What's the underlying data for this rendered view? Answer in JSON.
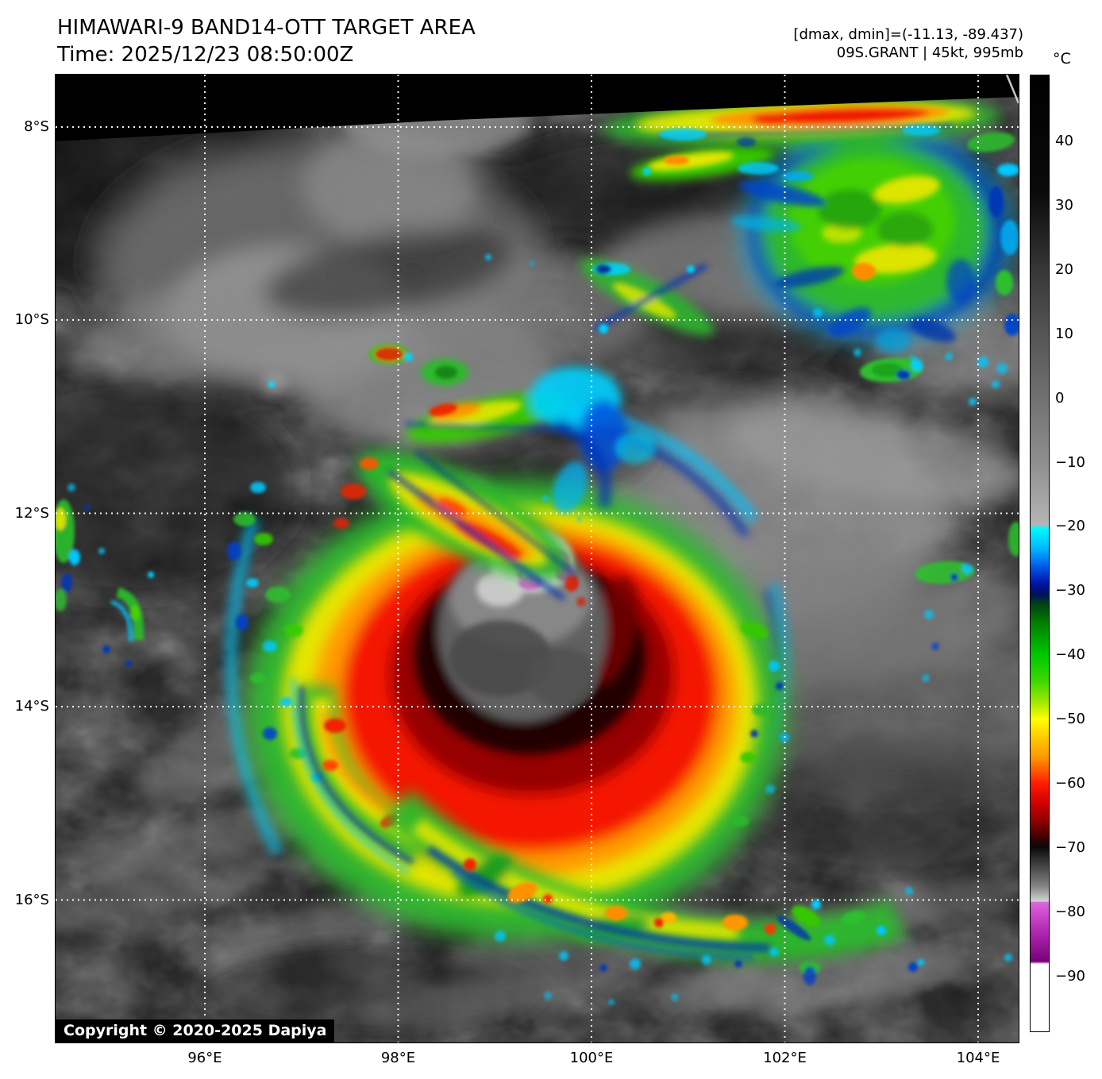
{
  "header": {
    "title": "HIMAWARI-9 BAND14-OTT TARGET AREA",
    "time_line": "Time: 2025/12/23 08:50:00Z",
    "annotation_line1": "[dmax, dmin]=(-11.13, -89.437)",
    "annotation_line2": "09S.GRANT | 45kt, 995mb"
  },
  "map": {
    "copyright": "Copyright © 2020-2025 Dapiya"
  },
  "axes": {
    "lat_tick_labels": [
      "8°S",
      "10°S",
      "12°S",
      "14°S",
      "16°S"
    ],
    "lon_tick_labels": [
      "96°E",
      "98°E",
      "100°E",
      "102°E",
      "104°E"
    ]
  },
  "colorbar": {
    "unit": "°C",
    "ticks": [
      {
        "value": 40,
        "label": "40"
      },
      {
        "value": 30,
        "label": "30"
      },
      {
        "value": 20,
        "label": "20"
      },
      {
        "value": 10,
        "label": "10"
      },
      {
        "value": 0,
        "label": "0"
      },
      {
        "value": -10,
        "label": "−10"
      },
      {
        "value": -20,
        "label": "−20"
      },
      {
        "value": -30,
        "label": "−30"
      },
      {
        "value": -40,
        "label": "−40"
      },
      {
        "value": -50,
        "label": "−50"
      },
      {
        "value": -60,
        "label": "−60"
      },
      {
        "value": -70,
        "label": "−70"
      },
      {
        "value": -80,
        "label": "−80"
      },
      {
        "value": -90,
        "label": "−90"
      }
    ],
    "scale_top_c": 50.4,
    "scale_bottom_c": -98.7,
    "stops": [
      {
        "v": 50.4,
        "c": "#000000"
      },
      {
        "v": 32,
        "c": "#0a0a0a"
      },
      {
        "v": 20,
        "c": "#373737"
      },
      {
        "v": 10,
        "c": "#555555"
      },
      {
        "v": 0,
        "c": "#717171"
      },
      {
        "v": -10,
        "c": "#8f8f8f"
      },
      {
        "v": -19.9,
        "c": "#b6b6b6"
      },
      {
        "v": -20,
        "c": "#00ffff"
      },
      {
        "v": -23.5,
        "c": "#00b4ff"
      },
      {
        "v": -26.5,
        "c": "#0050e6"
      },
      {
        "v": -29,
        "c": "#0012a0"
      },
      {
        "v": -30.5,
        "c": "#001060"
      },
      {
        "v": -32,
        "c": "#004016"
      },
      {
        "v": -35,
        "c": "#008000"
      },
      {
        "v": -40,
        "c": "#00c800"
      },
      {
        "v": -44,
        "c": "#3cd800"
      },
      {
        "v": -47,
        "c": "#96e600"
      },
      {
        "v": -50,
        "c": "#ffff00"
      },
      {
        "v": -53,
        "c": "#ffc800"
      },
      {
        "v": -56,
        "c": "#ff9600"
      },
      {
        "v": -58,
        "c": "#ff5a00"
      },
      {
        "v": -60,
        "c": "#ff1e00"
      },
      {
        "v": -63,
        "c": "#d20000"
      },
      {
        "v": -66,
        "c": "#8c0000"
      },
      {
        "v": -68.5,
        "c": "#3c0000"
      },
      {
        "v": -70,
        "c": "#0a0a0a"
      },
      {
        "v": -73,
        "c": "#464646"
      },
      {
        "v": -76,
        "c": "#828282"
      },
      {
        "v": -78.4,
        "c": "#d2d2d2"
      },
      {
        "v": -78.6,
        "c": "#dc64dc"
      },
      {
        "v": -83,
        "c": "#b428b4"
      },
      {
        "v": -87.8,
        "c": "#780078"
      },
      {
        "v": -88.2,
        "c": "#ffffff"
      },
      {
        "v": -98.7,
        "c": "#ffffff"
      }
    ]
  },
  "chart_data": {
    "type": "heatmap",
    "subtype": "infrared-satellite-brightness-temperature",
    "title": "HIMAWARI-9 BAND14-OTT TARGET AREA",
    "time": "2025/12/23 08:50:00Z",
    "satellite": "HIMAWARI-9",
    "band": "BAND14-OTT",
    "dmax_c": -11.13,
    "dmin_c": -89.437,
    "storm": {
      "id": "09S.GRANT",
      "max_wind": "45kt",
      "min_pressure": "995mb"
    },
    "x_axis": {
      "label": "longitude",
      "tick_labels": [
        "96°E",
        "98°E",
        "100°E",
        "102°E",
        "104°E"
      ]
    },
    "y_axis": {
      "label": "latitude",
      "tick_labels": [
        "8°S",
        "10°S",
        "12°S",
        "14°S",
        "16°S"
      ]
    },
    "colorbar": {
      "unit": "°C",
      "tick_values": [
        40,
        30,
        20,
        10,
        0,
        -10,
        -20,
        -30,
        -40,
        -50,
        -60,
        -70,
        -80,
        -90
      ],
      "enhancement_segments": [
        {
          "range_c": [
            45,
            -20
          ],
          "colors": "black to light gray ramp"
        },
        {
          "range_c": [
            -20,
            -30
          ],
          "colors": "cyan to dark blue"
        },
        {
          "range_c": [
            -30,
            -50
          ],
          "colors": "dark green to green to yellow"
        },
        {
          "range_c": [
            -50,
            -60
          ],
          "colors": "yellow to orange to red"
        },
        {
          "range_c": [
            -60,
            -70
          ],
          "colors": "red to dark red to black"
        },
        {
          "range_c": [
            -70,
            -80
          ],
          "colors": "black to light gray ramp"
        },
        {
          "range_c": [
            -80,
            -90
          ],
          "colors": "magenta to dark purple"
        },
        {
          "range_c": [
            -90,
            -99
          ],
          "colors": "white"
        }
      ],
      "position": "right"
    },
    "grid": "white dotted graticule every 2 degrees",
    "features": [
      "tropical cyclone with cold convective ring below -70C centered near 13.4S 99.5E",
      "overshooting tops below -80C shown magenta near 12.6S 99.6E inside warm-gray central dense overcast",
      "elongated convective band along 8S between 100E and 104E with large green cold cloud mass near 8.8S 103E",
      "spiral rainband of green-yellow-orange cells arcing south of the center from 98E toward 102.5E",
      "no-data black wedge along the northern edge of the target area"
    ]
  }
}
